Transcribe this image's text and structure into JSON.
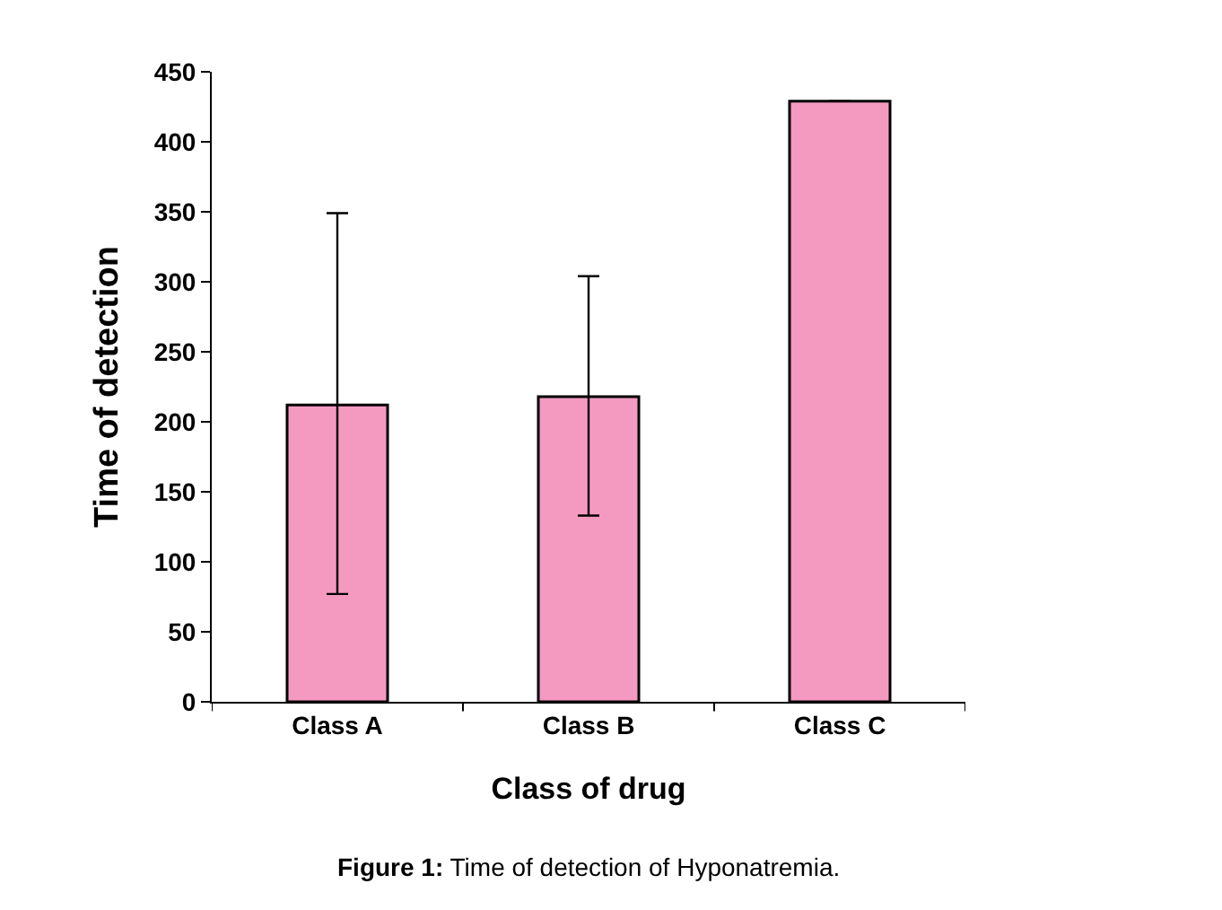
{
  "chart_data": {
    "type": "bar",
    "categories": [
      "Class A",
      "Class B",
      "Class C"
    ],
    "values": [
      212,
      218,
      429
    ],
    "errors": [
      [
        77,
        349
      ],
      [
        133,
        304
      ],
      null
    ],
    "color": "#f49ac1",
    "xlabel": "Class of drug",
    "ylabel": "Time of detection",
    "ylim": [
      0,
      450
    ],
    "yticks": [
      0,
      50,
      100,
      150,
      200,
      250,
      300,
      350,
      400,
      450
    ],
    "annotations": [
      "Figure 1: Time of detection of Hyponatremia."
    ]
  }
}
